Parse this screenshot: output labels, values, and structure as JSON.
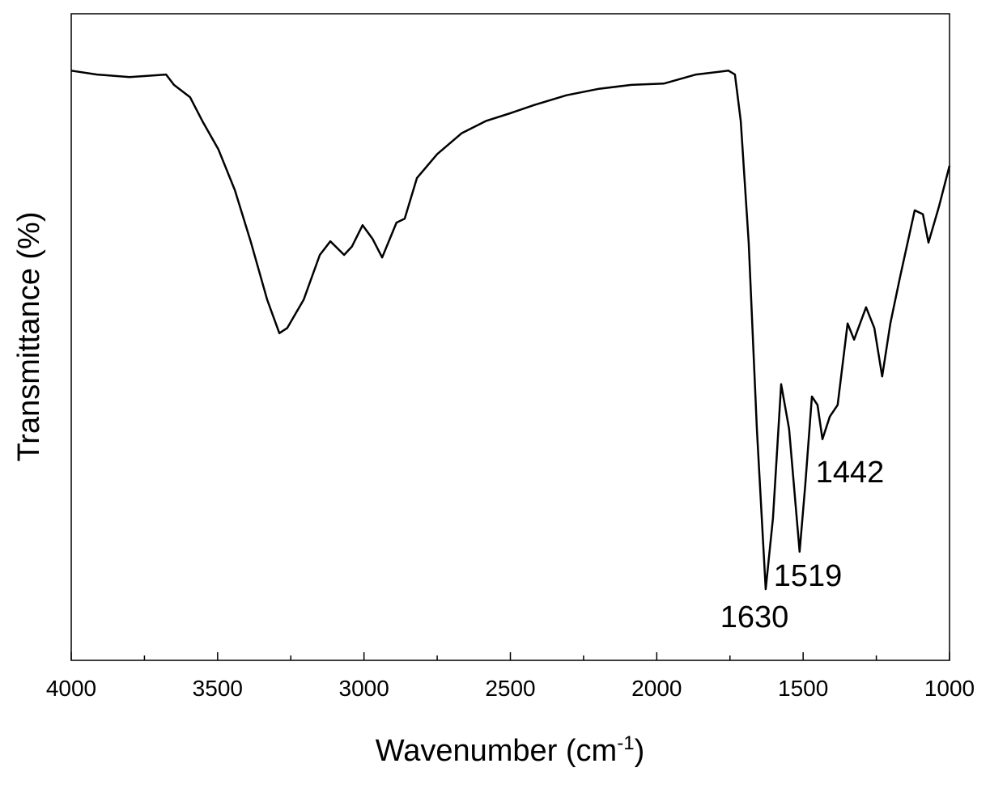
{
  "chart_data": {
    "type": "line",
    "ylabel": "Transmittance (%)",
    "xlabel": {
      "text": "Wavenumber (cm",
      "superscript": "-1",
      "suffix": ")"
    },
    "xlim": [
      4000,
      1000
    ],
    "ylim": [
      0,
      100
    ],
    "xticks": [
      4000,
      3500,
      3000,
      2500,
      2000,
      1500,
      1000
    ],
    "xminor_ticks": [
      3750,
      3250,
      2750,
      2250,
      1750,
      1250
    ],
    "series": [
      {
        "name": "spectrum",
        "color": "#000000",
        "x": [
          4000,
          3912,
          3801,
          3676,
          3649,
          3594,
          3552,
          3497,
          3441,
          3386,
          3331,
          3289,
          3262,
          3206,
          3151,
          3115,
          3068,
          3041,
          3005,
          2971,
          2938,
          2889,
          2861,
          2819,
          2750,
          2667,
          2584,
          2501,
          2418,
          2308,
          2197,
          2087,
          1976,
          1866,
          1755,
          1733,
          1713,
          1686,
          1658,
          1628,
          1603,
          1575,
          1548,
          1512,
          1493,
          1470,
          1451,
          1434,
          1409,
          1382,
          1348,
          1326,
          1285,
          1257,
          1230,
          1202,
          1169,
          1119,
          1091,
          1072,
          1036,
          1000
        ],
        "values": [
          91.2,
          90.6,
          90.2,
          90.6,
          89.0,
          87.1,
          83.4,
          79.0,
          72.7,
          64.6,
          55.8,
          50.6,
          51.4,
          55.8,
          62.7,
          64.8,
          62.7,
          64.0,
          67.3,
          65.2,
          62.3,
          67.7,
          68.3,
          74.6,
          78.3,
          81.5,
          83.4,
          84.6,
          85.9,
          87.4,
          88.4,
          89.0,
          89.2,
          90.6,
          91.2,
          90.6,
          83.4,
          64.6,
          35.8,
          11.0,
          22.0,
          42.7,
          35.8,
          16.8,
          27.0,
          40.8,
          39.5,
          34.2,
          37.7,
          39.5,
          52.1,
          49.6,
          54.6,
          51.4,
          43.9,
          52.1,
          59.3,
          69.6,
          69.0,
          64.6,
          70.2,
          76.5
        ]
      }
    ],
    "annotations": [
      {
        "text": "1630"
      },
      {
        "text": "1519"
      },
      {
        "text": "1442"
      }
    ]
  }
}
